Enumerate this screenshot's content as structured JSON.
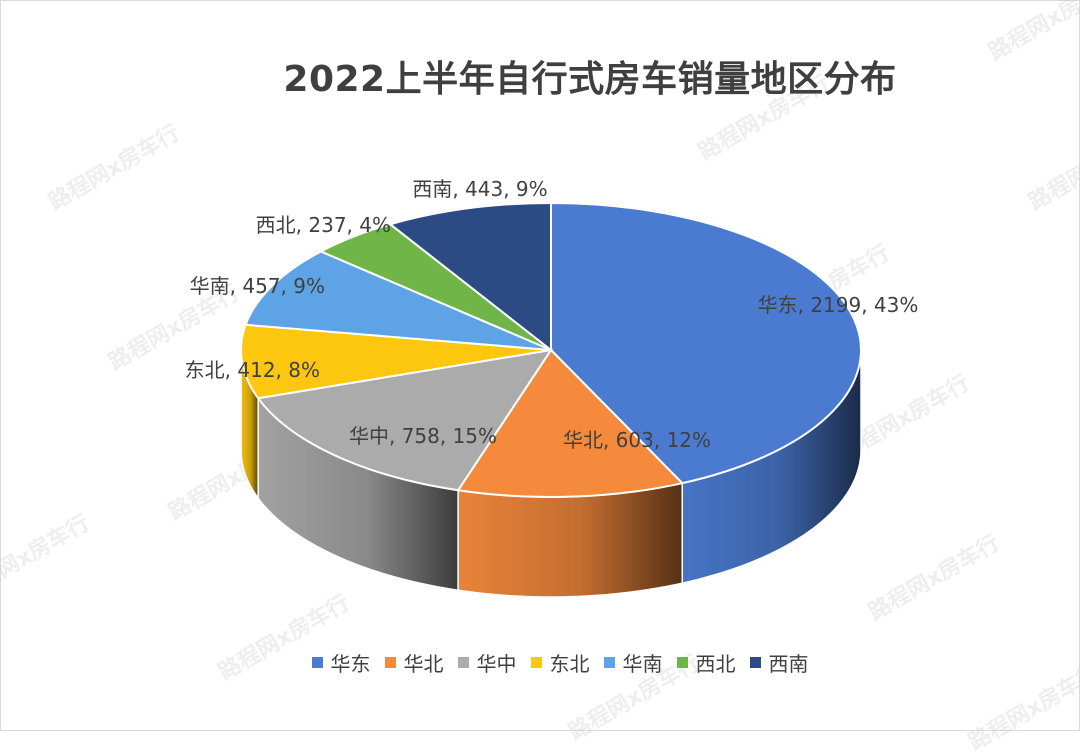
{
  "watermark_text": "路程网x房车行",
  "chart_data": {
    "type": "pie",
    "title": "2022上半年自行式房车销量地区分布",
    "categories": [
      "华东",
      "华北",
      "华中",
      "东北",
      "华南",
      "西北",
      "西南"
    ],
    "values": [
      2199,
      603,
      758,
      412,
      457,
      237,
      443
    ],
    "percents": [
      "43%",
      "12%",
      "15%",
      "8%",
      "9%",
      "4%",
      "9%"
    ],
    "data_labels": [
      "华东, 2199, 43%",
      "华北, 603, 12%",
      "华中, 758, 15%",
      "东北, 412, 8%",
      "华南, 457, 9%",
      "西北, 237, 4%",
      "西南, 443, 9%"
    ],
    "colors": [
      "#4a7bd0",
      "#f58a3d",
      "#ababab",
      "#fec70f",
      "#5ea3e6",
      "#6fb548",
      "#2c4b84"
    ],
    "style": "3d-pie",
    "legend_position": "bottom"
  }
}
